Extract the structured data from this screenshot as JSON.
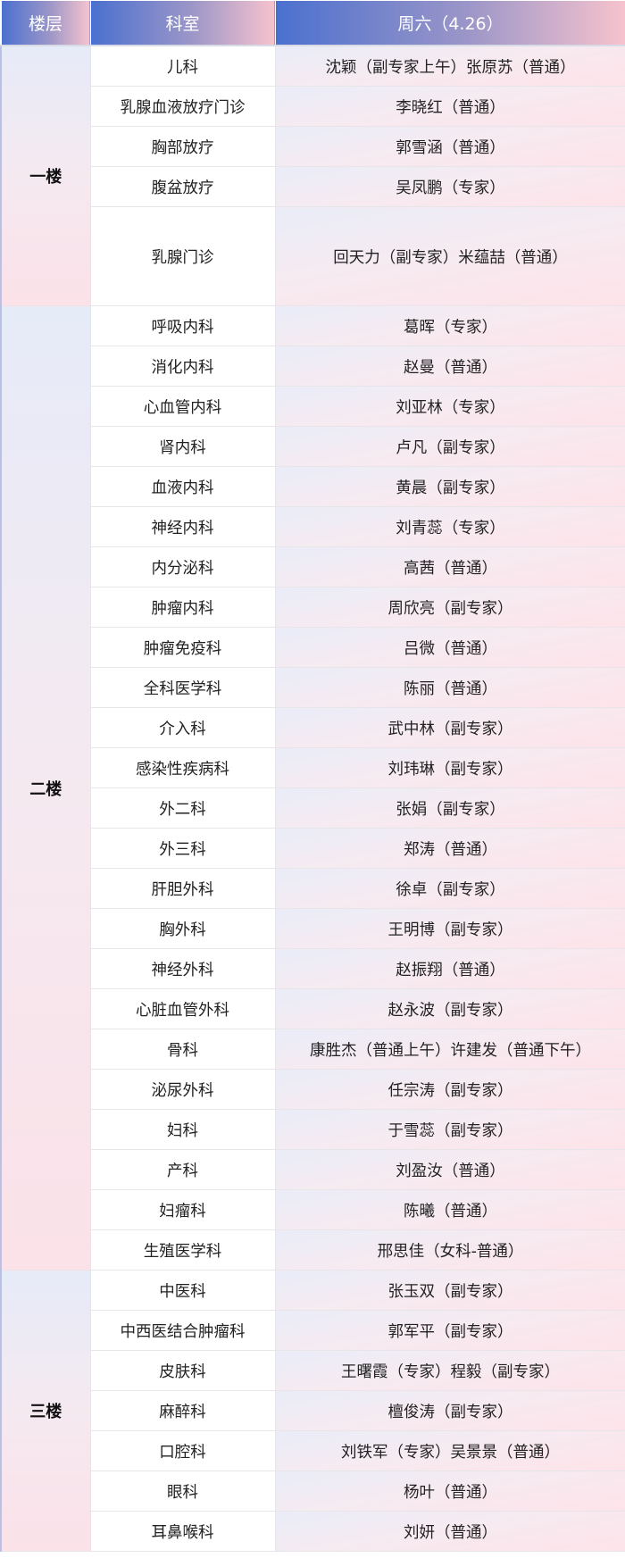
{
  "header": {
    "floor": "楼层",
    "department": "科室",
    "day": "周六（4.26）"
  },
  "floors": [
    {
      "name": "一楼",
      "rows": [
        {
          "dept": "儿科",
          "doctors": "沈颖（副专家上午）张原苏（普通）"
        },
        {
          "dept": "乳腺血液放疗门诊",
          "doctors": "李晓红（普通）"
        },
        {
          "dept": "胸部放疗",
          "doctors": "郭雪涵（普通）"
        },
        {
          "dept": "腹盆放疗",
          "doctors": "吴凤鹏（专家）"
        },
        {
          "dept": "乳腺门诊",
          "doctors": "回天力（副专家）米蕴喆（普通）",
          "tall": true
        }
      ]
    },
    {
      "name": "二楼",
      "rows": [
        {
          "dept": "呼吸内科",
          "doctors": "葛晖（专家）"
        },
        {
          "dept": "消化内科",
          "doctors": "赵曼（普通）"
        },
        {
          "dept": "心血管内科",
          "doctors": "刘亚林（专家）"
        },
        {
          "dept": "肾内科",
          "doctors": "卢凡（副专家）"
        },
        {
          "dept": "血液内科",
          "doctors": "黄晨（副专家）"
        },
        {
          "dept": "神经内科",
          "doctors": "刘青蕊（专家）"
        },
        {
          "dept": "内分泌科",
          "doctors": "高茜（普通）"
        },
        {
          "dept": "肿瘤内科",
          "doctors": "周欣亮（副专家）"
        },
        {
          "dept": "肿瘤免疫科",
          "doctors": "吕微（普通）"
        },
        {
          "dept": "全科医学科",
          "doctors": "陈丽（普通）"
        },
        {
          "dept": "介入科",
          "doctors": "武中林（副专家）"
        },
        {
          "dept": "感染性疾病科",
          "doctors": "刘玮琳（副专家）"
        },
        {
          "dept": "外二科",
          "doctors": "张娟（副专家）"
        },
        {
          "dept": "外三科",
          "doctors": "郑涛（普通）"
        },
        {
          "dept": "肝胆外科",
          "doctors": "徐卓（副专家）"
        },
        {
          "dept": "胸外科",
          "doctors": "王明博（副专家）"
        },
        {
          "dept": "神经外科",
          "doctors": "赵振翔（普通）"
        },
        {
          "dept": "心脏血管外科",
          "doctors": "赵永波（副专家）"
        },
        {
          "dept": "骨科",
          "doctors": "康胜杰（普通上午）许建发（普通下午）"
        },
        {
          "dept": "泌尿外科",
          "doctors": "任宗涛（副专家）"
        },
        {
          "dept": "妇科",
          "doctors": "于雪蕊（副专家）"
        },
        {
          "dept": "产科",
          "doctors": "刘盈汝（普通）"
        },
        {
          "dept": "妇瘤科",
          "doctors": "陈曦（普通）"
        },
        {
          "dept": "生殖医学科",
          "doctors": "邢思佳（女科-普通）"
        }
      ]
    },
    {
      "name": "三楼",
      "rows": [
        {
          "dept": "中医科",
          "doctors": "张玉双（副专家）"
        },
        {
          "dept": "中西医结合肿瘤科",
          "doctors": "郭军平（副专家）"
        },
        {
          "dept": "皮肤科",
          "doctors": "王曙霞（专家）程毅（副专家）"
        },
        {
          "dept": "麻醉科",
          "doctors": "檀俊涛（副专家）"
        },
        {
          "dept": "口腔科",
          "doctors": "刘铁军（专家）吴景景（普通）"
        },
        {
          "dept": "眼科",
          "doctors": "杨叶（普通）"
        },
        {
          "dept": "耳鼻喉科",
          "doctors": "刘妍（普通）"
        }
      ]
    }
  ],
  "colors": {
    "header_start": "#4a70cf",
    "header_end": "#f7c3cd"
  }
}
